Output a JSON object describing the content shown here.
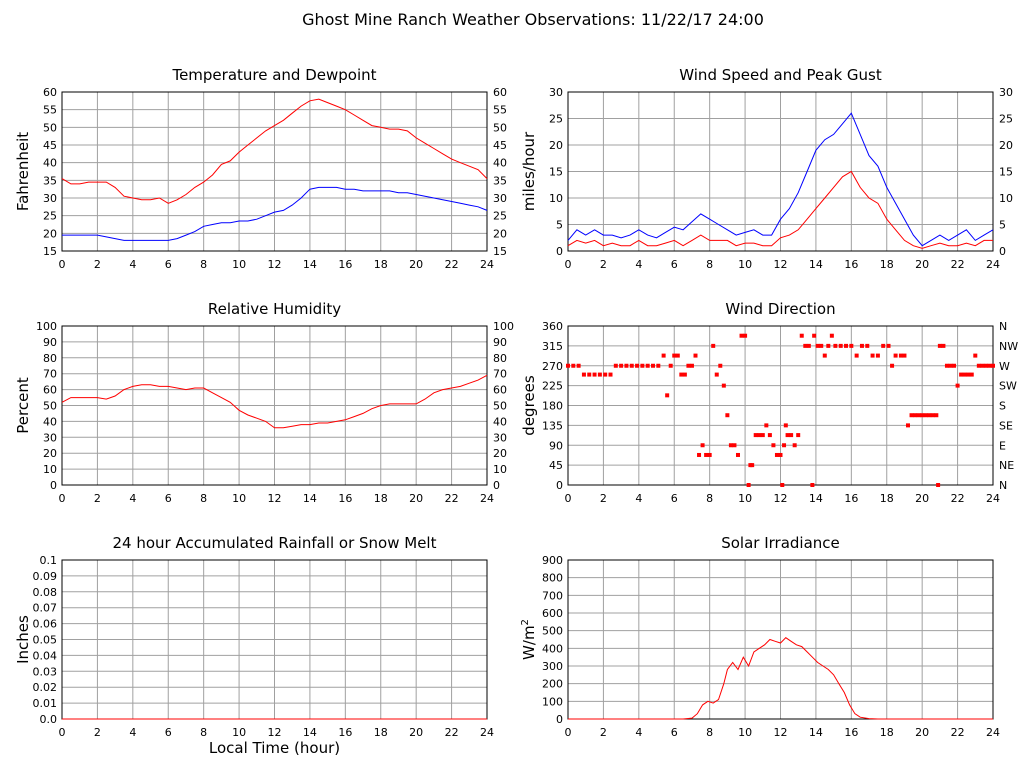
{
  "page_title": "Ghost Mine Ranch Weather Observations: 11/22/17 24:00",
  "x_axis_label": "Local Time (hour)",
  "colors": {
    "temperature": "#ff0000",
    "dewpoint": "#0000ff",
    "wind_speed": "#ff0000",
    "peak_gust": "#0000ff",
    "humidity": "#ff0000",
    "direction": "#ff0000",
    "rain": "#ff0000",
    "solar": "#ff0000",
    "grid": "#a0a0a0",
    "frame": "#000000"
  },
  "chart_data": [
    {
      "id": "temperature",
      "type": "line",
      "title": "Temperature and Dewpoint",
      "xlabel": "",
      "ylabel": "Fahrenheit",
      "xlim": [
        0,
        24
      ],
      "ylim": [
        15,
        60
      ],
      "xticks": [
        "0",
        "2",
        "4",
        "6",
        "8",
        "10",
        "12",
        "14",
        "16",
        "18",
        "20",
        "22",
        "24"
      ],
      "yticks": [
        "15",
        "20",
        "25",
        "30",
        "35",
        "40",
        "45",
        "50",
        "55",
        "60"
      ],
      "right_axis": true,
      "grid": true,
      "x": [
        0,
        0.5,
        1,
        1.5,
        2,
        2.5,
        3,
        3.5,
        4,
        4.5,
        5,
        5.5,
        6,
        6.5,
        7,
        7.5,
        8,
        8.5,
        9,
        9.5,
        10,
        10.5,
        11,
        11.5,
        12,
        12.5,
        13,
        13.5,
        14,
        14.5,
        15,
        15.5,
        16,
        16.5,
        17,
        17.5,
        18,
        18.5,
        19,
        19.5,
        20,
        20.5,
        21,
        21.5,
        22,
        22.5,
        23,
        23.5,
        24
      ],
      "series": [
        {
          "values": [
            35.5,
            34,
            34,
            34.5,
            34.5,
            34.5,
            33,
            30.5,
            30,
            29.5,
            29.5,
            30,
            28.5,
            29.5,
            31,
            33,
            34.5,
            36.5,
            39.5,
            40.5,
            43,
            45,
            47,
            49,
            50.5,
            52,
            54,
            56,
            57.5,
            58,
            57,
            56,
            55,
            53.5,
            52,
            50.5,
            50,
            49.5,
            49.5,
            49,
            47,
            45.5,
            44,
            42.5,
            41,
            40,
            39,
            38,
            35.5
          ]
        },
        {
          "values": [
            19.5,
            19.5,
            19.5,
            19.5,
            19.5,
            19,
            18.5,
            18,
            18,
            18,
            18,
            18,
            18,
            18.5,
            19.5,
            20.5,
            22,
            22.5,
            23,
            23,
            23.5,
            23.5,
            24,
            25,
            26,
            26.5,
            28,
            30,
            32.5,
            33,
            33,
            33,
            32.5,
            32.5,
            32,
            32,
            32,
            32,
            31.5,
            31.5,
            31,
            30.5,
            30,
            29.5,
            29,
            28.5,
            28,
            27.5,
            26.5
          ]
        }
      ]
    },
    {
      "id": "wind",
      "type": "line",
      "title": "Wind Speed and Peak Gust",
      "xlabel": "",
      "ylabel": "miles/hour",
      "xlim": [
        0,
        24
      ],
      "ylim": [
        0,
        30
      ],
      "xticks": [
        "0",
        "2",
        "4",
        "6",
        "8",
        "10",
        "12",
        "14",
        "16",
        "18",
        "20",
        "22",
        "24"
      ],
      "yticks": [
        "0",
        "5",
        "10",
        "15",
        "20",
        "25",
        "30"
      ],
      "right_axis": true,
      "grid": true,
      "x": [
        0,
        0.5,
        1,
        1.5,
        2,
        2.5,
        3,
        3.5,
        4,
        4.5,
        5,
        5.5,
        6,
        6.5,
        7,
        7.5,
        8,
        8.5,
        9,
        9.5,
        10,
        10.5,
        11,
        11.5,
        12,
        12.5,
        13,
        13.5,
        14,
        14.5,
        15,
        15.5,
        16,
        16.5,
        17,
        17.5,
        18,
        18.5,
        19,
        19.5,
        20,
        20.5,
        21,
        21.5,
        22,
        22.5,
        23,
        23.5,
        24
      ],
      "series": [
        {
          "values": [
            1,
            2,
            1.5,
            2,
            1,
            1.5,
            1,
            1,
            2,
            1,
            1,
            1.5,
            2,
            1,
            2,
            3,
            2,
            2,
            2,
            1,
            1.5,
            1.5,
            1,
            1,
            2.5,
            3,
            4,
            6,
            8,
            10,
            12,
            14,
            15,
            12,
            10,
            9,
            6,
            4,
            2,
            1,
            0.5,
            1,
            1.5,
            1,
            1,
            1.5,
            1,
            2,
            2
          ]
        },
        {
          "values": [
            2,
            4,
            3,
            4,
            3,
            3,
            2.5,
            3,
            4,
            3,
            2.5,
            3.5,
            4.5,
            4,
            5.5,
            7,
            6,
            5,
            4,
            3,
            3.5,
            4,
            3,
            3,
            6,
            8,
            11,
            15,
            19,
            21,
            22,
            24,
            26,
            22,
            18,
            16,
            12,
            9,
            6,
            3,
            1,
            2,
            3,
            2,
            3,
            4,
            2,
            3,
            4
          ]
        }
      ]
    },
    {
      "id": "humidity",
      "type": "line",
      "title": "Relative Humidity",
      "xlabel": "",
      "ylabel": "Percent",
      "xlim": [
        0,
        24
      ],
      "ylim": [
        0,
        100
      ],
      "xticks": [
        "0",
        "2",
        "4",
        "6",
        "8",
        "10",
        "12",
        "14",
        "16",
        "18",
        "20",
        "22",
        "24"
      ],
      "yticks": [
        "0",
        "10",
        "20",
        "30",
        "40",
        "50",
        "60",
        "70",
        "80",
        "90",
        "100"
      ],
      "right_axis": true,
      "grid": true,
      "x": [
        0,
        0.5,
        1,
        1.5,
        2,
        2.5,
        3,
        3.5,
        4,
        4.5,
        5,
        5.5,
        6,
        6.5,
        7,
        7.5,
        8,
        8.5,
        9,
        9.5,
        10,
        10.5,
        11,
        11.5,
        12,
        12.5,
        13,
        13.5,
        14,
        14.5,
        15,
        15.5,
        16,
        16.5,
        17,
        17.5,
        18,
        18.5,
        19,
        19.5,
        20,
        20.5,
        21,
        21.5,
        22,
        22.5,
        23,
        23.5,
        24
      ],
      "series": [
        {
          "values": [
            52,
            55,
            55,
            55,
            55,
            54,
            56,
            60,
            62,
            63,
            63,
            62,
            62,
            61,
            60,
            61,
            61,
            58,
            55,
            52,
            47,
            44,
            42,
            40,
            36,
            36,
            37,
            38,
            38,
            39,
            39,
            40,
            41,
            43,
            45,
            48,
            50,
            51,
            51,
            51,
            51,
            54,
            58,
            60,
            61,
            62,
            64,
            66,
            69
          ]
        }
      ]
    },
    {
      "id": "direction",
      "type": "scatter",
      "title": "Wind Direction",
      "xlabel": "",
      "ylabel": "degrees",
      "xlim": [
        0,
        24
      ],
      "ylim": [
        0,
        360
      ],
      "xticks": [
        "0",
        "2",
        "4",
        "6",
        "8",
        "10",
        "12",
        "14",
        "16",
        "18",
        "20",
        "22",
        "24"
      ],
      "yticks": [
        "0",
        "45",
        "90",
        "135",
        "180",
        "225",
        "270",
        "315",
        "360"
      ],
      "right_ticks": [
        "N",
        "NE",
        "E",
        "SE",
        "S",
        "SW",
        "W",
        "NW",
        "N"
      ],
      "grid": true,
      "points": [
        [
          0,
          270
        ],
        [
          0.3,
          270
        ],
        [
          0.6,
          270
        ],
        [
          0.9,
          250
        ],
        [
          1.2,
          250
        ],
        [
          1.5,
          250
        ],
        [
          1.8,
          250
        ],
        [
          2.1,
          250
        ],
        [
          2.4,
          250
        ],
        [
          2.7,
          270
        ],
        [
          3,
          270
        ],
        [
          3.3,
          270
        ],
        [
          3.6,
          270
        ],
        [
          3.9,
          270
        ],
        [
          4.2,
          270
        ],
        [
          4.5,
          270
        ],
        [
          4.8,
          270
        ],
        [
          5.1,
          270
        ],
        [
          5.4,
          293
        ],
        [
          5.6,
          203
        ],
        [
          5.8,
          270
        ],
        [
          6,
          293
        ],
        [
          6.2,
          293
        ],
        [
          6.4,
          250
        ],
        [
          6.6,
          250
        ],
        [
          6.8,
          270
        ],
        [
          7,
          270
        ],
        [
          7.2,
          293
        ],
        [
          7.4,
          68
        ],
        [
          7.6,
          90
        ],
        [
          7.8,
          68
        ],
        [
          8,
          68
        ],
        [
          8.2,
          315
        ],
        [
          8.4,
          250
        ],
        [
          8.6,
          270
        ],
        [
          8.8,
          225
        ],
        [
          9,
          158
        ],
        [
          9.2,
          90
        ],
        [
          9.4,
          90
        ],
        [
          9.6,
          68
        ],
        [
          9.8,
          338
        ],
        [
          10,
          338
        ],
        [
          10.2,
          0
        ],
        [
          10.3,
          45
        ],
        [
          10.4,
          45
        ],
        [
          10.6,
          113
        ],
        [
          10.8,
          113
        ],
        [
          11,
          113
        ],
        [
          11.2,
          135
        ],
        [
          11.4,
          113
        ],
        [
          11.6,
          90
        ],
        [
          11.8,
          68
        ],
        [
          12,
          68
        ],
        [
          12.1,
          0
        ],
        [
          12.2,
          90
        ],
        [
          12.3,
          135
        ],
        [
          12.4,
          113
        ],
        [
          12.6,
          113
        ],
        [
          12.8,
          90
        ],
        [
          13,
          113
        ],
        [
          13.2,
          338
        ],
        [
          13.4,
          315
        ],
        [
          13.6,
          315
        ],
        [
          13.8,
          0
        ],
        [
          13.9,
          338
        ],
        [
          14.1,
          315
        ],
        [
          14.3,
          315
        ],
        [
          14.5,
          293
        ],
        [
          14.7,
          315
        ],
        [
          14.9,
          338
        ],
        [
          15.1,
          315
        ],
        [
          15.4,
          315
        ],
        [
          15.7,
          315
        ],
        [
          16,
          315
        ],
        [
          16.3,
          293
        ],
        [
          16.6,
          315
        ],
        [
          16.9,
          315
        ],
        [
          17.2,
          293
        ],
        [
          17.5,
          293
        ],
        [
          17.8,
          315
        ],
        [
          18.1,
          315
        ],
        [
          18.3,
          270
        ],
        [
          18.5,
          293
        ],
        [
          18.8,
          293
        ],
        [
          19,
          293
        ],
        [
          19.2,
          135
        ],
        [
          19.4,
          158
        ],
        [
          19.6,
          158
        ],
        [
          19.8,
          158
        ],
        [
          20,
          158
        ],
        [
          20.2,
          158
        ],
        [
          20.4,
          158
        ],
        [
          20.6,
          158
        ],
        [
          20.8,
          158
        ],
        [
          20.9,
          0
        ],
        [
          21,
          315
        ],
        [
          21.2,
          315
        ],
        [
          21.4,
          270
        ],
        [
          21.6,
          270
        ],
        [
          21.8,
          270
        ],
        [
          22,
          225
        ],
        [
          22.2,
          250
        ],
        [
          22.4,
          250
        ],
        [
          22.6,
          250
        ],
        [
          22.8,
          250
        ],
        [
          23,
          293
        ],
        [
          23.2,
          270
        ],
        [
          23.4,
          270
        ],
        [
          23.6,
          270
        ],
        [
          23.8,
          270
        ],
        [
          24,
          270
        ]
      ]
    },
    {
      "id": "rain",
      "type": "line",
      "title": "24 hour Accumulated Rainfall or Snow Melt",
      "xlabel": "Local Time (hour)",
      "ylabel": "Inches",
      "xlim": [
        0,
        24
      ],
      "ylim": [
        0,
        0.1
      ],
      "xticks": [
        "0",
        "2",
        "4",
        "6",
        "8",
        "10",
        "12",
        "14",
        "16",
        "18",
        "20",
        "22",
        "24"
      ],
      "yticks": [
        "0.0",
        "0.01",
        "0.02",
        "0.03",
        "0.04",
        "0.05",
        "0.06",
        "0.07",
        "0.08",
        "0.09",
        "0.1"
      ],
      "right_axis": false,
      "grid": true,
      "x": [
        0,
        24
      ],
      "series": [
        {
          "values": [
            0,
            0
          ]
        }
      ]
    },
    {
      "id": "solar",
      "type": "line",
      "title": "Solar Irradiance",
      "xlabel": "",
      "ylabel": "W/m",
      "ylabel_sup": "2",
      "xlim": [
        0,
        24
      ],
      "ylim": [
        0,
        900
      ],
      "xticks": [
        "0",
        "2",
        "4",
        "6",
        "8",
        "10",
        "12",
        "14",
        "16",
        "18",
        "20",
        "22",
        "24"
      ],
      "yticks": [
        "0",
        "100",
        "200",
        "300",
        "400",
        "500",
        "600",
        "700",
        "800",
        "900"
      ],
      "right_axis": false,
      "grid": true,
      "x": [
        0,
        6.5,
        7,
        7.3,
        7.6,
        7.9,
        8.2,
        8.5,
        8.8,
        9,
        9.3,
        9.6,
        9.9,
        10.2,
        10.5,
        10.8,
        11.1,
        11.4,
        11.7,
        12,
        12.3,
        12.6,
        12.9,
        13.2,
        13.5,
        13.8,
        14.1,
        14.4,
        14.7,
        15,
        15.3,
        15.6,
        15.9,
        16.2,
        16.5,
        17,
        17.5,
        18,
        24
      ],
      "series": [
        {
          "values": [
            0,
            0,
            5,
            30,
            80,
            100,
            90,
            110,
            200,
            280,
            320,
            280,
            350,
            300,
            380,
            400,
            420,
            450,
            440,
            430,
            460,
            440,
            420,
            410,
            380,
            350,
            320,
            300,
            280,
            250,
            200,
            150,
            80,
            30,
            10,
            2,
            0,
            0,
            0
          ]
        }
      ]
    }
  ]
}
